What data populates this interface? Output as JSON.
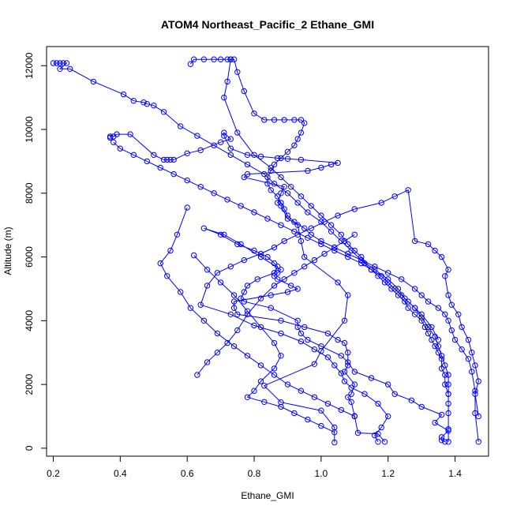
{
  "chart_data": {
    "type": "line",
    "title": "ATOM4 Northeast_Pacific_2 Ethane_GMI",
    "xlabel": "Ethane_GMI",
    "ylabel": "Altitude (m)",
    "xlim": [
      0.18,
      1.5
    ],
    "ylim": [
      -250,
      12600
    ],
    "x_ticks": [
      0.2,
      0.4,
      0.6,
      0.8,
      1.0,
      1.2,
      1.4
    ],
    "x_tick_labels": [
      "0.2",
      "0.4",
      "0.6",
      "0.8",
      "1.0",
      "1.2",
      "1.4"
    ],
    "y_ticks": [
      0,
      2000,
      4000,
      6000,
      8000,
      10000,
      12000
    ],
    "y_tick_labels": [
      "0",
      "2000",
      "4000",
      "6000",
      "8000",
      "10000",
      "12000"
    ],
    "grid": false,
    "color": "#0000ff",
    "series": [
      {
        "x": [
          1.04,
          1.04,
          1.0,
          0.88,
          0.83,
          0.98,
          1.0,
          1.07,
          1.08,
          1.05,
          0.95,
          0.94,
          0.93,
          0.9,
          0.88,
          0.87,
          0.88,
          0.89,
          0.77,
          0.78,
          0.96,
          1.0,
          1.03,
          1.05,
          0.94,
          0.9,
          0.87,
          0.82,
          0.78,
          0.73,
          0.71,
          0.71,
          0.73,
          0.7,
          0.64,
          0.6,
          0.56,
          0.55,
          0.54,
          0.53,
          0.5,
          0.43,
          0.39,
          0.38,
          0.37,
          0.37
        ],
        "y": [
          180,
          650,
          1180,
          1440,
          1960,
          2640,
          3050,
          4000,
          4800,
          5200,
          6000,
          6500,
          7000,
          7200,
          7600,
          7700,
          8000,
          8200,
          8500,
          8600,
          8700,
          8800,
          8900,
          8950,
          9050,
          9080,
          9100,
          9150,
          9200,
          9400,
          9800,
          9900,
          9700,
          9600,
          9350,
          9250,
          9050,
          9050,
          9050,
          9050,
          9200,
          9850,
          9850,
          9780,
          9780,
          9740
        ]
      },
      {
        "x": [
          1.19,
          1.17,
          1.11,
          1.1,
          1.09,
          1.08,
          1.09,
          1.1,
          1.07,
          1.08,
          1.08,
          1.07,
          1.05,
          1.02,
          0.95,
          0.88,
          0.75,
          0.74,
          0.74,
          0.85,
          0.9,
          0.93,
          0.91,
          0.87,
          0.86,
          0.87,
          0.88,
          0.82,
          0.76,
          0.71,
          0.65,
          0.7,
          0.75,
          0.8,
          0.84,
          0.86,
          0.87,
          0.86,
          0.81,
          0.78,
          0.77,
          0.76,
          0.77,
          0.85,
          0.93,
          0.93,
          0.94,
          0.96,
          1.0,
          1.06,
          1.08,
          1.1,
          1.15,
          1.2,
          1.22,
          1.27,
          1.3,
          1.36,
          1.34,
          1.38,
          1.36,
          1.36,
          1.37
        ],
        "y": [
          200,
          450,
          480,
          1010,
          1450,
          1600,
          1700,
          2000,
          2400,
          2600,
          3000,
          3300,
          3400,
          3600,
          3800,
          4000,
          4200,
          4400,
          4600,
          4800,
          4900,
          5000,
          5100,
          5300,
          5400,
          5500,
          5600,
          6000,
          6400,
          6700,
          6900,
          6700,
          6400,
          6200,
          6000,
          5800,
          5700,
          5500,
          5300,
          5100,
          4900,
          4700,
          4600,
          4400,
          4000,
          3800,
          3600,
          3400,
          3200,
          2900,
          2700,
          2400,
          2200,
          2000,
          1700,
          1500,
          1300,
          1050,
          800,
          550,
          350,
          250,
          200
        ]
      },
      {
        "x": [
          1.17,
          1.16,
          1.18,
          1.2,
          1.17,
          1.13,
          1.09,
          1.07,
          1.06,
          1.04,
          1.02,
          0.98,
          0.94,
          0.88,
          0.8,
          0.73,
          0.64,
          0.66,
          0.69,
          0.73,
          0.77,
          0.82,
          0.86,
          0.89,
          0.93,
          0.97,
          1.01,
          1.05,
          1.1,
          1.18,
          1.22,
          1.26,
          1.28,
          1.32,
          1.34,
          1.36,
          1.38,
          1.37,
          1.38,
          1.39,
          1.41,
          1.42,
          1.44,
          1.45,
          1.46,
          1.47,
          1.46,
          1.47
        ],
        "y": [
          200,
          400,
          650,
          1000,
          1400,
          1700,
          1900,
          2100,
          2350,
          2600,
          2850,
          3100,
          3350,
          3600,
          3850,
          4200,
          4500,
          5100,
          5500,
          5700,
          5900,
          6100,
          6300,
          6500,
          6700,
          6900,
          7100,
          7300,
          7500,
          7700,
          7900,
          8100,
          6500,
          6400,
          6200,
          6000,
          5600,
          5400,
          4800,
          4500,
          4200,
          3800,
          3400,
          3000,
          2600,
          2100,
          1700,
          1000
        ]
      },
      {
        "x": [
          0.73,
          0.74,
          0.75,
          0.77,
          0.8,
          0.83,
          0.86,
          0.89,
          0.92,
          0.94,
          0.95,
          0.94,
          0.93,
          0.92,
          0.9,
          0.88,
          0.86,
          0.85,
          0.84,
          0.84,
          0.85,
          0.87,
          0.88,
          0.89,
          0.9,
          0.92,
          0.95,
          0.97,
          1.0,
          1.04,
          1.08,
          1.12,
          1.16,
          1.2,
          1.24,
          1.28,
          1.3,
          1.32,
          1.35,
          1.37,
          1.38,
          1.39,
          1.4,
          1.42,
          1.44,
          1.45,
          1.46,
          1.46,
          1.47
        ],
        "y": [
          12200,
          12200,
          11800,
          11200,
          10500,
          10300,
          10300,
          10300,
          10300,
          10300,
          10200,
          9900,
          9700,
          9500,
          9300,
          9100,
          8900,
          8700,
          8500,
          8300,
          8100,
          7900,
          7700,
          7500,
          7300,
          7100,
          6900,
          6700,
          6500,
          6300,
          6100,
          5900,
          5700,
          5500,
          5300,
          5000,
          4800,
          4600,
          4400,
          4200,
          4000,
          3700,
          3400,
          3100,
          2800,
          2400,
          1800,
          1100,
          200
        ]
      },
      {
        "x": [
          0.61,
          0.62,
          0.65,
          0.68,
          0.7,
          0.72,
          0.73,
          0.72,
          0.71,
          0.75,
          0.8,
          0.85,
          0.88,
          0.91,
          0.94,
          0.97,
          1.0,
          1.03,
          1.06,
          1.08,
          1.1,
          1.12,
          1.13,
          1.15,
          1.17,
          1.19,
          1.21,
          1.23,
          1.25,
          1.26,
          1.28,
          1.3,
          1.31,
          1.32,
          1.33,
          1.34,
          1.35,
          1.36,
          1.36,
          1.37,
          1.37,
          1.38,
          1.38,
          1.38,
          1.38,
          1.38
        ],
        "y": [
          12050,
          12200,
          12200,
          12200,
          12200,
          12200,
          12200,
          11500,
          11000,
          9900,
          9200,
          8800,
          8500,
          8200,
          7900,
          7600,
          7300,
          7000,
          6700,
          6400,
          6200,
          6000,
          5800,
          5600,
          5400,
          5200,
          5000,
          4800,
          4600,
          4400,
          4200,
          4000,
          3800,
          3600,
          3400,
          3200,
          3000,
          2800,
          2500,
          2300,
          2000,
          1700,
          1400,
          1100,
          600,
          200
        ]
      },
      {
        "x": [
          0.2,
          0.21,
          0.22,
          0.23,
          0.24,
          0.22,
          0.25,
          0.32,
          0.41,
          0.44,
          0.47,
          0.48,
          0.5,
          0.53,
          0.58,
          0.63,
          0.68,
          0.73,
          0.78,
          0.83,
          0.86,
          0.9,
          0.93,
          0.96,
          1.0,
          1.03,
          1.06,
          1.09,
          1.12,
          1.16,
          1.2,
          1.23,
          1.25,
          1.28,
          1.3,
          1.32,
          1.34,
          1.35,
          1.36,
          1.37,
          1.38,
          1.38,
          1.38
        ],
        "y": [
          12080,
          12080,
          12080,
          12080,
          12080,
          11900,
          11900,
          11500,
          11100,
          10900,
          10850,
          10800,
          10750,
          10550,
          10100,
          9800,
          9500,
          9200,
          8900,
          8600,
          8300,
          8000,
          7700,
          7400,
          7100,
          6800,
          6500,
          6200,
          5900,
          5600,
          5300,
          5000,
          4700,
          4400,
          4100,
          3800,
          3500,
          3200,
          2900,
          2600,
          2300,
          2000,
          1700
        ]
      },
      {
        "x": [
          0.38,
          0.4,
          0.44,
          0.48,
          0.52,
          0.56,
          0.6,
          0.64,
          0.68,
          0.72,
          0.76,
          0.8,
          0.84,
          0.88,
          0.92,
          0.96,
          1.0,
          1.04,
          1.08,
          1.12,
          1.15,
          1.18,
          1.2,
          1.22,
          1.24,
          1.26,
          1.28,
          1.3,
          1.33,
          1.35
        ],
        "y": [
          9600,
          9400,
          9200,
          9000,
          8800,
          8600,
          8400,
          8200,
          8000,
          7800,
          7600,
          7400,
          7200,
          7000,
          6800,
          6600,
          6400,
          6200,
          6000,
          5800,
          5600,
          5400,
          5200,
          5000,
          4800,
          4600,
          4400,
          4200,
          3800,
          3400
        ]
      },
      {
        "x": [
          0.6,
          0.57,
          0.55,
          0.52,
          0.54,
          0.58,
          0.61,
          0.65,
          0.69,
          0.74,
          0.78,
          0.82,
          0.86,
          0.9,
          0.94,
          0.98,
          1.02,
          1.06,
          1.1
        ],
        "y": [
          7550,
          6700,
          6200,
          5800,
          5400,
          4900,
          4400,
          4000,
          3600,
          3200,
          2900,
          2600,
          2300,
          2000,
          1800,
          1600,
          1400,
          1200,
          1000
        ]
      },
      {
        "x": [
          0.63,
          0.66,
          0.69,
          0.72,
          0.75,
          0.78,
          0.82,
          0.86,
          0.89,
          0.92,
          0.95,
          0.98,
          1.01,
          1.04,
          1.07,
          1.1
        ],
        "y": [
          2300,
          2700,
          3000,
          3300,
          3700,
          4200,
          4700,
          5100,
          5300,
          5500,
          5700,
          5900,
          6100,
          6300,
          6500,
          6700
        ]
      },
      {
        "x": [
          0.62,
          0.66,
          0.7,
          0.74,
          0.78,
          0.82,
          0.86,
          0.88,
          0.86,
          0.82,
          0.8,
          0.78,
          0.83,
          0.88,
          0.92,
          0.96,
          1.0,
          1.04
        ],
        "y": [
          6050,
          5600,
          5200,
          4800,
          4300,
          3800,
          3300,
          2900,
          2500,
          2100,
          1800,
          1600,
          1450,
          1300,
          1100,
          900,
          700,
          500
        ]
      }
    ]
  }
}
